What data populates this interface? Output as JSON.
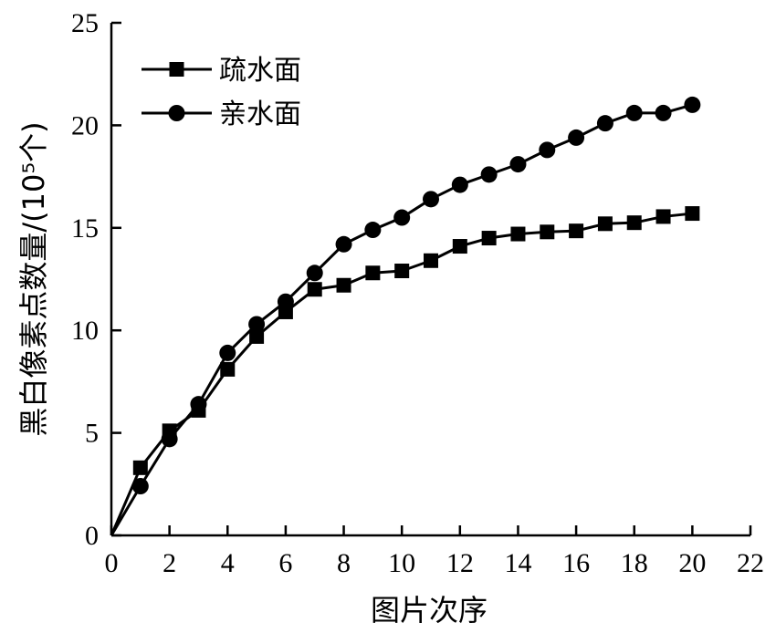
{
  "chart_data": {
    "type": "line",
    "xlabel": "图片次序",
    "ylabel": "黑白像素点数量/(10⁵个)",
    "xlim": [
      0,
      22
    ],
    "ylim": [
      0,
      25
    ],
    "xticks": [
      0,
      2,
      4,
      6,
      8,
      10,
      12,
      14,
      16,
      18,
      20,
      22
    ],
    "yticks": [
      0,
      5,
      10,
      15,
      20,
      25
    ],
    "grid": false,
    "legend_position": "top-left",
    "x": [
      0,
      1,
      2,
      3,
      4,
      5,
      6,
      7,
      8,
      9,
      10,
      11,
      12,
      13,
      14,
      15,
      16,
      17,
      18,
      19,
      20
    ],
    "series": [
      {
        "name": "疏水面",
        "marker": "square",
        "color": "#000000",
        "values": [
          0,
          3.3,
          5.1,
          6.1,
          8.1,
          9.7,
          10.9,
          12.0,
          12.2,
          12.8,
          12.9,
          13.4,
          14.1,
          14.5,
          14.7,
          14.8,
          14.85,
          15.2,
          15.25,
          15.55,
          15.7
        ]
      },
      {
        "name": "亲水面",
        "marker": "circle",
        "color": "#000000",
        "values": [
          0,
          2.4,
          4.7,
          6.4,
          8.9,
          10.3,
          11.4,
          12.8,
          14.2,
          14.9,
          15.5,
          16.4,
          17.1,
          17.6,
          18.1,
          18.8,
          19.4,
          20.1,
          20.6,
          20.6,
          21.0
        ]
      }
    ]
  }
}
